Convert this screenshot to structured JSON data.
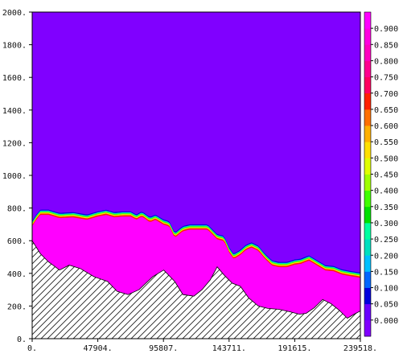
{
  "chart_data": {
    "type": "heatmap",
    "title": "",
    "xlabel": "",
    "ylabel": "",
    "xlim": [
      0,
      239518
    ],
    "ylim": [
      0,
      2000
    ],
    "x_ticks": [
      {
        "value": 0,
        "label": "0."
      },
      {
        "value": 47904,
        "label": "47904."
      },
      {
        "value": 95807,
        "label": "95807."
      },
      {
        "value": 143711,
        "label": "143711."
      },
      {
        "value": 191615,
        "label": "191615."
      },
      {
        "value": 239518,
        "label": "239518."
      }
    ],
    "y_ticks": [
      {
        "value": 0,
        "label": "0."
      },
      {
        "value": 200,
        "label": "200."
      },
      {
        "value": 400,
        "label": "400."
      },
      {
        "value": 600,
        "label": "600."
      },
      {
        "value": 800,
        "label": "800."
      },
      {
        "value": 1000,
        "label": "1000."
      },
      {
        "value": 1200,
        "label": "1200."
      },
      {
        "value": 1400,
        "label": "1400."
      },
      {
        "value": 1600,
        "label": "1600."
      },
      {
        "value": 1800,
        "label": "1800."
      },
      {
        "value": 2000,
        "label": "2000."
      }
    ],
    "colorbar": {
      "colors": [
        "#8000ff",
        "#6a00ff",
        "#0000dd",
        "#0066ff",
        "#00c0ff",
        "#00e0c0",
        "#00ffa0",
        "#00e000",
        "#40ff00",
        "#a0ff00",
        "#e0ff00",
        "#ffe000",
        "#ffb000",
        "#ff7000",
        "#ff2000",
        "#ff0060",
        "#ff0090",
        "#ff00c0",
        "#ff00e0",
        "#ff00ff"
      ],
      "labels": [
        "0.000",
        "0.050",
        "0.100",
        "0.150",
        "0.200",
        "0.250",
        "0.300",
        "0.350",
        "0.400",
        "0.450",
        "0.500",
        "0.550",
        "0.600",
        "0.650",
        "0.700",
        "0.750",
        "0.800",
        "0.850",
        "0.900"
      ]
    },
    "background_value_color": "#8000ff",
    "terrain": {
      "x": [
        0,
        6000,
        12000,
        20000,
        27000,
        35000,
        45000,
        55000,
        62000,
        70000,
        78000,
        88000,
        96000,
        104000,
        110000,
        118000,
        124000,
        130000,
        135000,
        140000,
        146000,
        152000,
        158000,
        165000,
        172000,
        180000,
        188000,
        195000,
        200000,
        206000,
        212000,
        218000,
        224000,
        230000,
        235000,
        239518
      ],
      "y": [
        600,
        520,
        470,
        420,
        450,
        430,
        380,
        350,
        290,
        270,
        300,
        380,
        420,
        350,
        270,
        260,
        300,
        360,
        440,
        390,
        340,
        320,
        250,
        200,
        185,
        180,
        165,
        150,
        155,
        190,
        240,
        215,
        175,
        125,
        150,
        170
      ]
    },
    "layer_top": {
      "x": [
        0,
        3000,
        6000,
        12000,
        20000,
        30000,
        40000,
        48000,
        54000,
        60000,
        66000,
        72000,
        76000,
        80000,
        86000,
        90000,
        95807,
        100000,
        104000,
        110000,
        115000,
        120000,
        128000,
        135000,
        140000,
        143711,
        147000,
        152000,
        156000,
        160000,
        165000,
        170000,
        175000,
        180000,
        186000,
        191615,
        196000,
        202000,
        208000,
        214000,
        220000,
        226000,
        232000,
        239518
      ],
      "y": [
        720,
        760,
        790,
        790,
        770,
        775,
        760,
        780,
        790,
        775,
        780,
        780,
        760,
        780,
        745,
        760,
        730,
        720,
        650,
        690,
        700,
        700,
        700,
        640,
        630,
        560,
        520,
        545,
        575,
        590,
        570,
        520,
        480,
        470,
        470,
        485,
        490,
        510,
        480,
        450,
        445,
        425,
        415,
        405
      ]
    }
  }
}
